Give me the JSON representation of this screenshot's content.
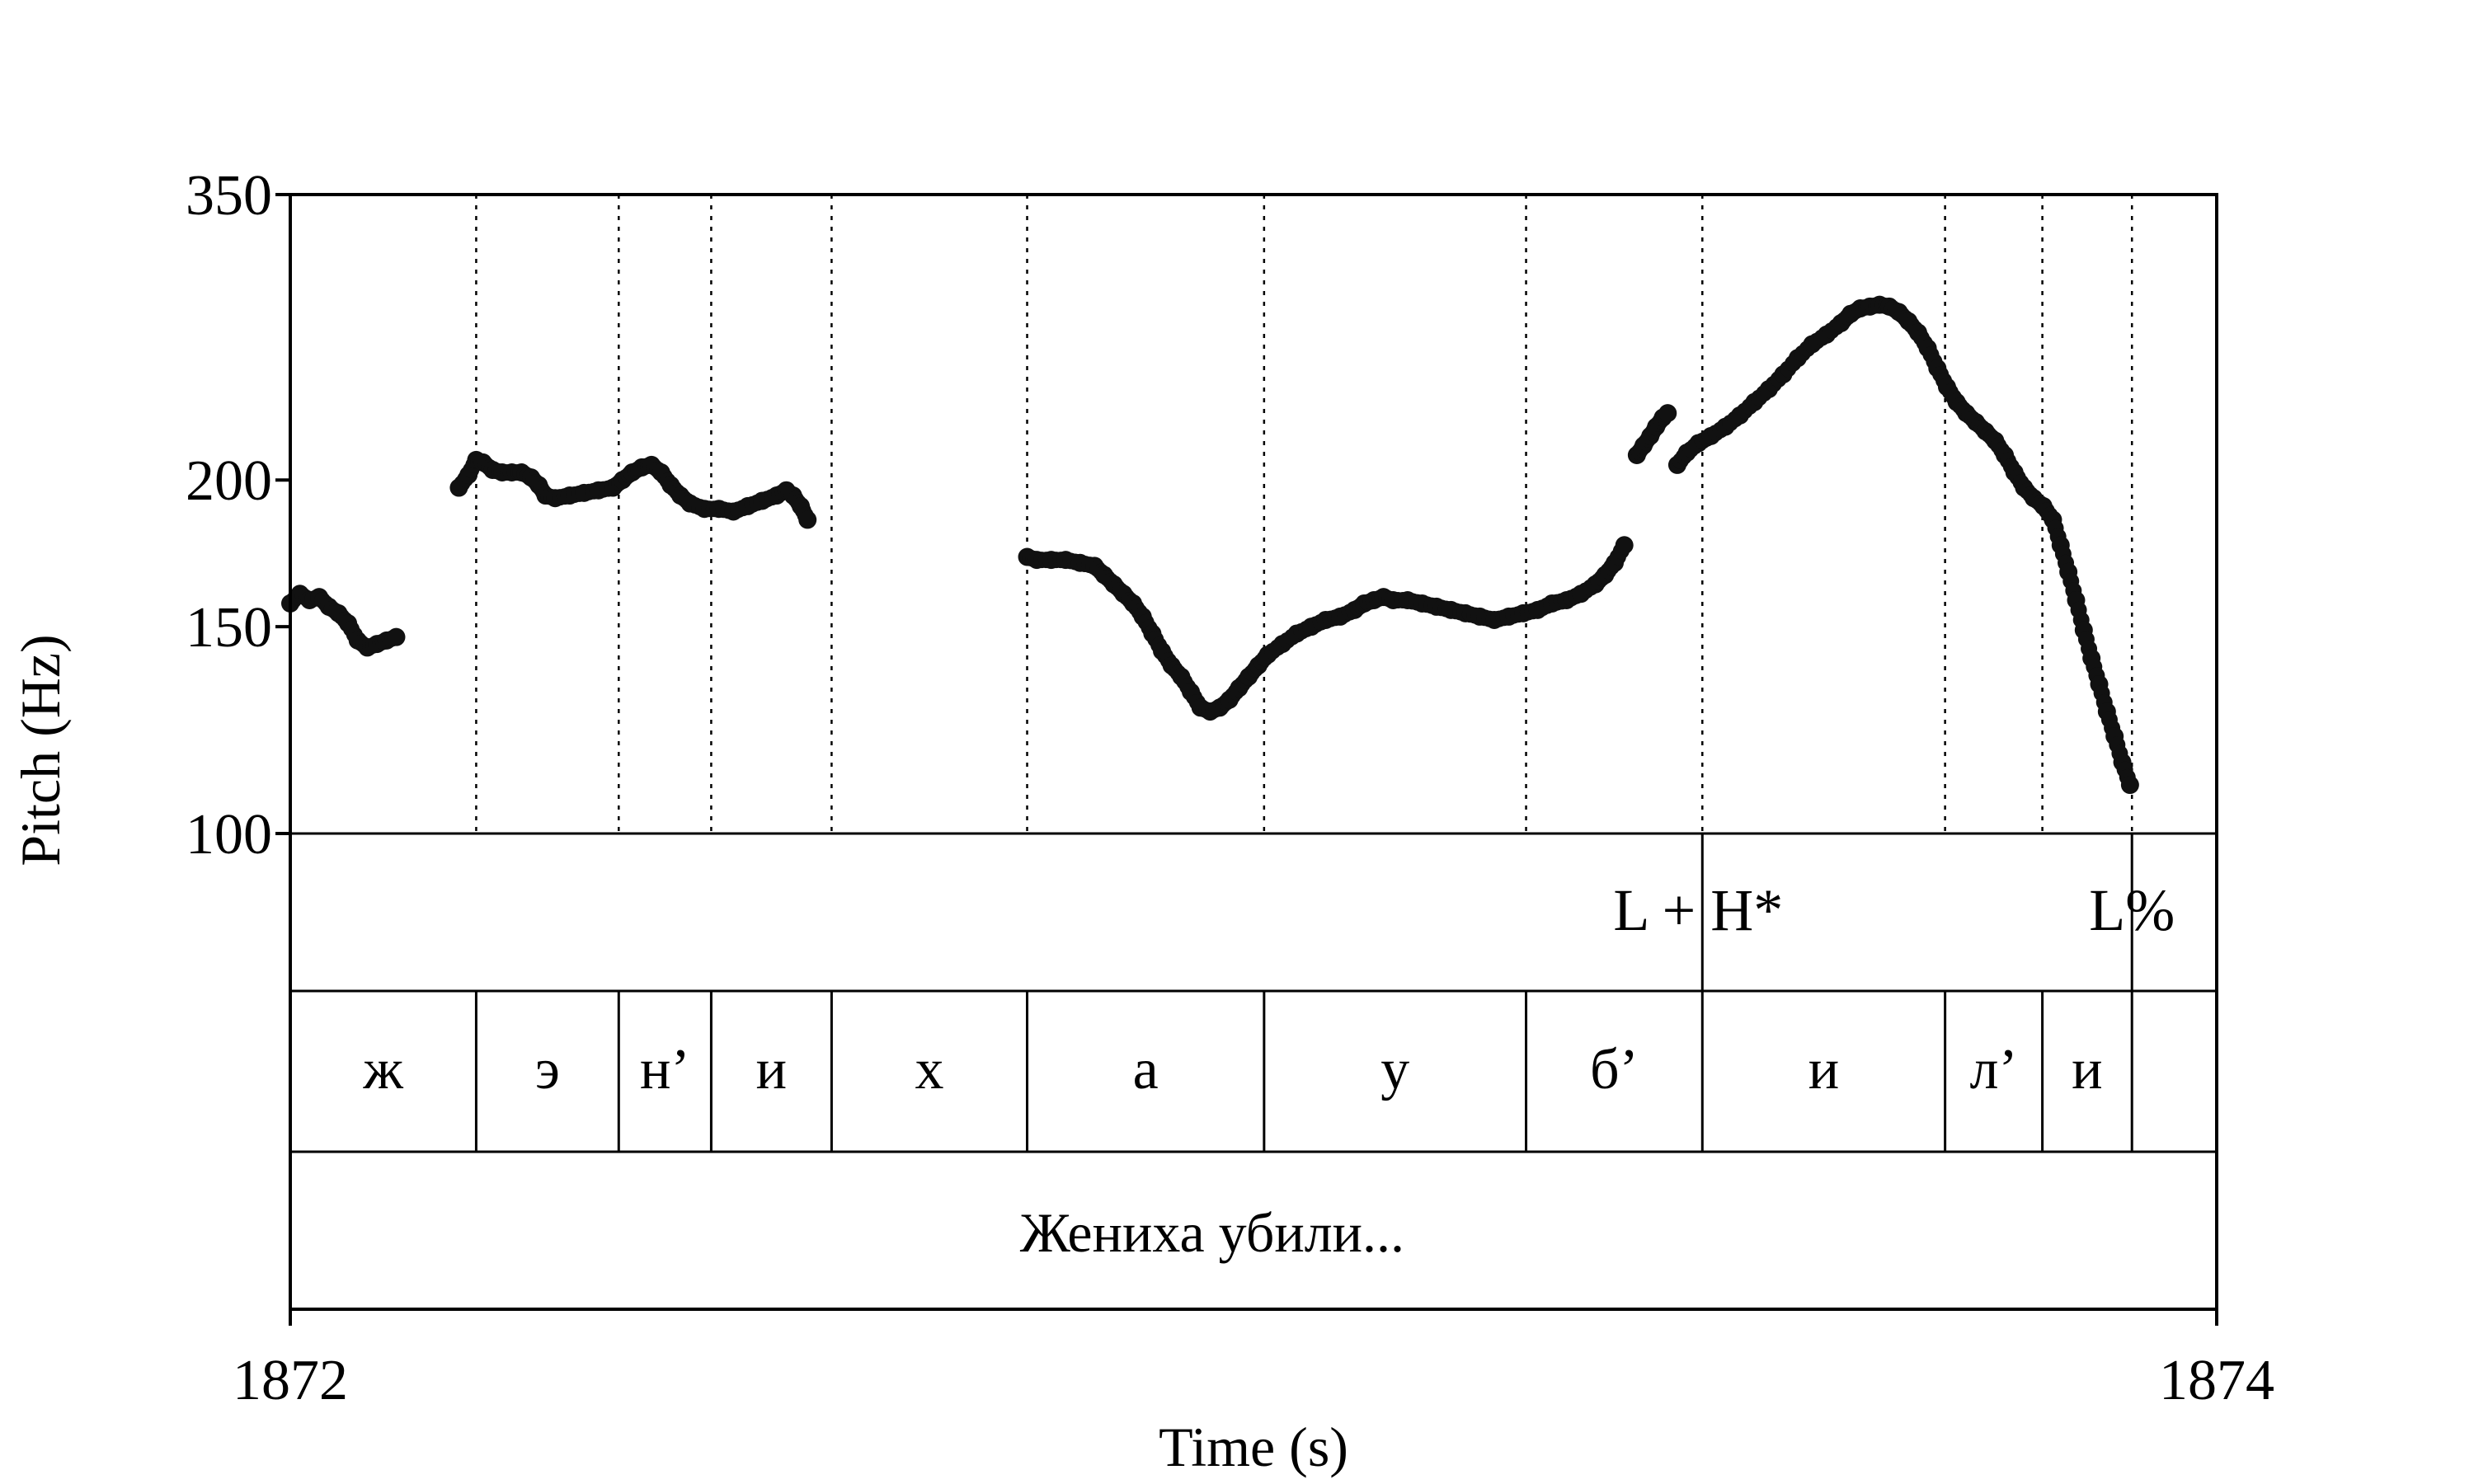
{
  "chart_data": {
    "type": "scatter",
    "title": "",
    "xlabel": "Time (s)",
    "ylabel": "Pitch (Hz)",
    "xlim": [
      1872,
      1874
    ],
    "ylim": [
      100,
      350
    ],
    "y_scale": "log",
    "x_ticks": [
      {
        "value": 1872,
        "label": "1872"
      },
      {
        "value": 1874,
        "label": "1874"
      }
    ],
    "y_ticks": [
      {
        "value": 100,
        "label": "100"
      },
      {
        "value": 150,
        "label": "150"
      },
      {
        "value": 200,
        "label": "200"
      },
      {
        "value": 350,
        "label": "350"
      }
    ],
    "segment_boundaries": [
      1872.193,
      1872.341,
      1872.437,
      1872.562,
      1872.765,
      1873.011,
      1873.283,
      1873.466,
      1873.718,
      1873.819,
      1873.912
    ],
    "tiers": {
      "tones": [
        {
          "t": 1873.466,
          "label": "L + H*"
        },
        {
          "t": 1873.912,
          "label": "L%"
        }
      ],
      "segments": [
        {
          "start": 1872.0,
          "end": 1872.193,
          "label": "ж"
        },
        {
          "start": 1872.193,
          "end": 1872.341,
          "label": "э"
        },
        {
          "start": 1872.341,
          "end": 1872.437,
          "label": "н’"
        },
        {
          "start": 1872.437,
          "end": 1872.562,
          "label": "и"
        },
        {
          "start": 1872.562,
          "end": 1872.765,
          "label": "х"
        },
        {
          "start": 1872.765,
          "end": 1873.011,
          "label": "а"
        },
        {
          "start": 1873.011,
          "end": 1873.283,
          "label": "у"
        },
        {
          "start": 1873.283,
          "end": 1873.466,
          "label": "б’"
        },
        {
          "start": 1873.466,
          "end": 1873.718,
          "label": "и"
        },
        {
          "start": 1873.718,
          "end": 1873.819,
          "label": "л’"
        },
        {
          "start": 1873.819,
          "end": 1873.912,
          "label": "и"
        },
        {
          "start": 1873.912,
          "end": 1874.0,
          "label": ""
        }
      ],
      "phrase": {
        "start": 1872.0,
        "end": 1874.0,
        "label": "Жениха убили..."
      }
    },
    "series": [
      {
        "points": [
          [
            1872.0,
            157
          ],
          [
            1872.01,
            160
          ],
          [
            1872.02,
            158
          ],
          [
            1872.03,
            159
          ],
          [
            1872.04,
            156
          ],
          [
            1872.05,
            154
          ],
          [
            1872.06,
            151
          ],
          [
            1872.07,
            146
          ],
          [
            1872.08,
            144
          ],
          [
            1872.09,
            145
          ],
          [
            1872.1,
            146
          ],
          [
            1872.11,
            147
          ]
        ]
      },
      {
        "points": [
          [
            1872.175,
            197
          ],
          [
            1872.185,
            202
          ],
          [
            1872.193,
            208
          ],
          [
            1872.2,
            207
          ],
          [
            1872.21,
            204
          ],
          [
            1872.22,
            203
          ],
          [
            1872.23,
            203
          ],
          [
            1872.24,
            203
          ],
          [
            1872.25,
            201
          ],
          [
            1872.258,
            198
          ],
          [
            1872.265,
            194
          ],
          [
            1872.275,
            193
          ],
          [
            1872.29,
            194
          ],
          [
            1872.305,
            195
          ],
          [
            1872.32,
            196
          ],
          [
            1872.335,
            197
          ],
          [
            1872.345,
            200
          ],
          [
            1872.355,
            203
          ],
          [
            1872.365,
            205
          ],
          [
            1872.375,
            206
          ],
          [
            1872.385,
            203
          ],
          [
            1872.395,
            198
          ],
          [
            1872.405,
            194
          ],
          [
            1872.415,
            191
          ],
          [
            1872.43,
            189
          ],
          [
            1872.445,
            189
          ],
          [
            1872.46,
            188
          ],
          [
            1872.475,
            190
          ],
          [
            1872.49,
            192
          ],
          [
            1872.505,
            194
          ],
          [
            1872.515,
            196
          ],
          [
            1872.522,
            194
          ],
          [
            1872.53,
            190
          ],
          [
            1872.537,
            185
          ]
        ]
      },
      {
        "points": [
          [
            1872.765,
            172
          ],
          [
            1872.775,
            171
          ],
          [
            1872.79,
            171
          ],
          [
            1872.805,
            171
          ],
          [
            1872.82,
            170
          ],
          [
            1872.835,
            169
          ],
          [
            1872.845,
            166
          ],
          [
            1872.855,
            163
          ],
          [
            1872.865,
            160
          ],
          [
            1872.875,
            157
          ],
          [
            1872.885,
            153
          ],
          [
            1872.895,
            148
          ],
          [
            1872.905,
            143
          ],
          [
            1872.915,
            139
          ],
          [
            1872.925,
            136
          ],
          [
            1872.935,
            132
          ],
          [
            1872.945,
            128
          ],
          [
            1872.955,
            127
          ],
          [
            1872.965,
            128
          ],
          [
            1872.975,
            130
          ],
          [
            1872.985,
            133
          ],
          [
            1872.995,
            136
          ],
          [
            1873.005,
            139
          ],
          [
            1873.015,
            142
          ],
          [
            1873.03,
            145
          ],
          [
            1873.045,
            148
          ],
          [
            1873.06,
            150
          ],
          [
            1873.075,
            152
          ],
          [
            1873.09,
            153
          ],
          [
            1873.105,
            155
          ],
          [
            1873.115,
            157
          ],
          [
            1873.125,
            158
          ],
          [
            1873.135,
            159
          ],
          [
            1873.145,
            158
          ],
          [
            1873.16,
            158
          ],
          [
            1873.175,
            157
          ],
          [
            1873.19,
            156
          ],
          [
            1873.205,
            155
          ],
          [
            1873.22,
            154
          ],
          [
            1873.235,
            153
          ],
          [
            1873.25,
            152
          ],
          [
            1873.265,
            153
          ],
          [
            1873.28,
            154
          ],
          [
            1873.295,
            155
          ],
          [
            1873.31,
            157
          ],
          [
            1873.325,
            158
          ],
          [
            1873.34,
            160
          ],
          [
            1873.355,
            163
          ],
          [
            1873.365,
            166
          ],
          [
            1873.375,
            170
          ],
          [
            1873.385,
            176
          ]
        ]
      },
      {
        "points": [
          [
            1873.398,
            210
          ],
          [
            1873.405,
            214
          ],
          [
            1873.412,
            218
          ],
          [
            1873.418,
            222
          ],
          [
            1873.425,
            226
          ],
          [
            1873.43,
            228
          ]
        ]
      },
      {
        "points": [
          [
            1873.44,
            206
          ],
          [
            1873.45,
            211
          ],
          [
            1873.462,
            215
          ],
          [
            1873.475,
            218
          ],
          [
            1873.49,
            222
          ],
          [
            1873.505,
            227
          ],
          [
            1873.52,
            233
          ],
          [
            1873.535,
            239
          ],
          [
            1873.55,
            246
          ],
          [
            1873.565,
            254
          ],
          [
            1873.58,
            261
          ],
          [
            1873.595,
            266
          ],
          [
            1873.61,
            272
          ],
          [
            1873.62,
            277
          ],
          [
            1873.63,
            280
          ],
          [
            1873.64,
            281
          ],
          [
            1873.65,
            282
          ],
          [
            1873.66,
            281
          ],
          [
            1873.67,
            278
          ],
          [
            1873.68,
            273
          ],
          [
            1873.69,
            267
          ],
          [
            1873.7,
            259
          ],
          [
            1873.71,
            249
          ],
          [
            1873.72,
            240
          ],
          [
            1873.73,
            233
          ],
          [
            1873.74,
            228
          ],
          [
            1873.75,
            224
          ],
          [
            1873.76,
            220
          ],
          [
            1873.77,
            216
          ],
          [
            1873.78,
            210
          ],
          [
            1873.79,
            203
          ],
          [
            1873.8,
            197
          ],
          [
            1873.81,
            193
          ],
          [
            1873.82,
            190
          ],
          [
            1873.83,
            185
          ],
          [
            1873.838,
            176
          ],
          [
            1873.846,
            167
          ],
          [
            1873.854,
            158
          ],
          [
            1873.862,
            149
          ],
          [
            1873.87,
            141
          ],
          [
            1873.878,
            134
          ],
          [
            1873.886,
            127
          ],
          [
            1873.894,
            121
          ],
          [
            1873.902,
            115
          ],
          [
            1873.91,
            110
          ]
        ]
      }
    ]
  }
}
